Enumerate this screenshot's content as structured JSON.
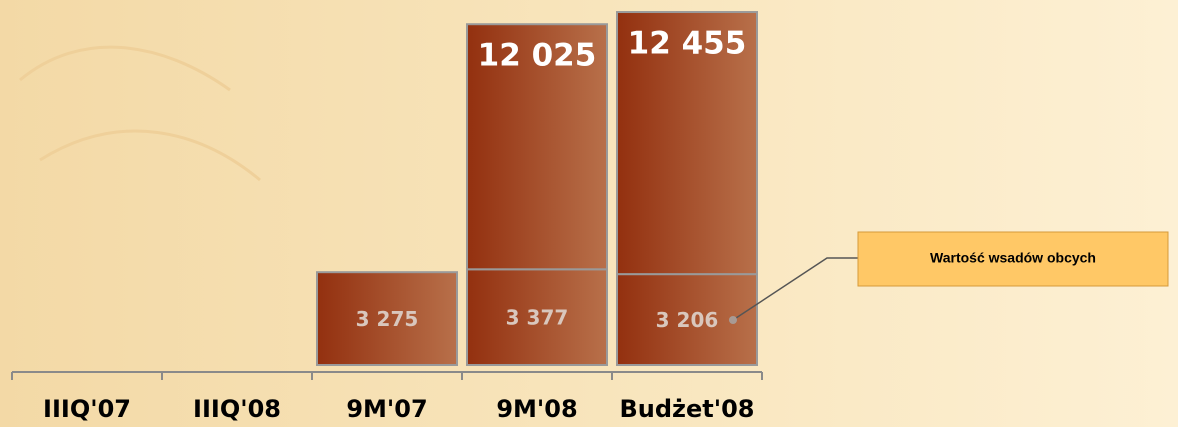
{
  "chart_data": {
    "type": "stacked-bar",
    "categories": [
      "IIIQ'07",
      "IIIQ'08",
      "9M'07",
      "9M'08",
      "Budżet'08"
    ],
    "series": [
      {
        "name": "Wartość wsadów obcych",
        "color": "#a4461f",
        "values": [
          null,
          null,
          3275,
          3377,
          3206
        ],
        "value_labels": [
          null,
          null,
          "3 275",
          "3 377",
          "3 206"
        ]
      },
      {
        "color": "#a4461f",
        "values": [
          null,
          null,
          null,
          8648,
          9249
        ]
      }
    ],
    "totals": {
      "values": [
        null,
        null,
        null,
        12025,
        12455
      ],
      "value_labels": [
        null,
        null,
        null,
        "12 025",
        "12 455"
      ]
    }
  }
}
